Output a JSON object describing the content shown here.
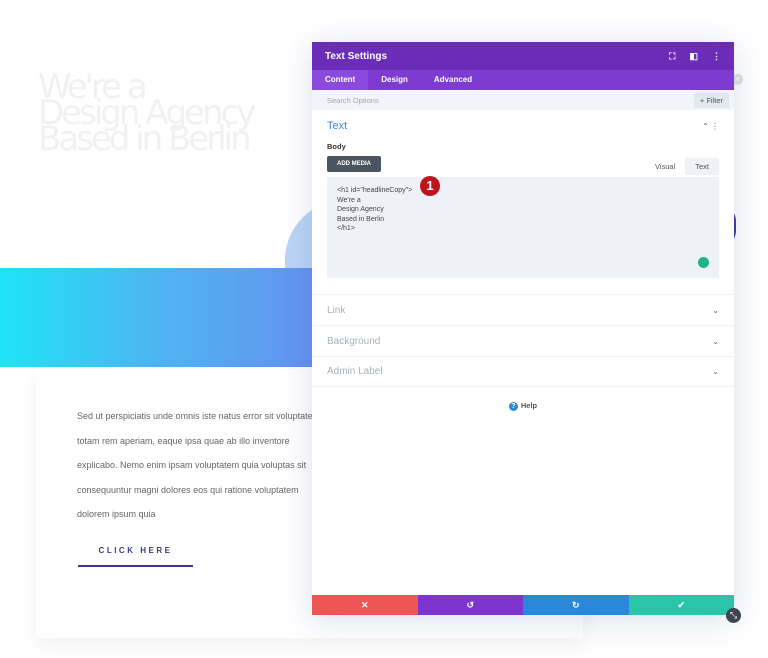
{
  "page": {
    "headline": "We're a\nDesign Agency\nBased in Berlin",
    "paragraph": [
      "Sed ut perspiciatis unde omnis iste natus error sit voluptatem",
      "totam rem aperiam, eaque ipsa quae ab illo inventore",
      "explicabo. Nemo enim ipsam voluptatem quia voluptas sit",
      "consequuntur magni dolores eos qui ratione voluptatem",
      "dolorem ipsum quia"
    ],
    "cta": "CLICK HERE"
  },
  "modal": {
    "title": "Text Settings",
    "tabs": [
      "Content",
      "Design",
      "Advanced"
    ],
    "search_placeholder": "Search Options",
    "filter": "+ Filter",
    "text_section": {
      "title": "Text",
      "body_label": "Body",
      "add_media": "ADD MEDIA",
      "editor_tabs": [
        "Visual",
        "Text"
      ],
      "content": "<h1 id=\"headlineCopy\">\nWe're a\nDesign Agency\nBased in Berlin\n</h1>"
    },
    "badge": "1",
    "sections": [
      "Link",
      "Background",
      "Admin Label"
    ],
    "help": "Help"
  },
  "colors": {
    "header": "#6b2db8",
    "tabs": "#7d3bd2",
    "cancel": "#ef5555",
    "undo": "#7e35d0",
    "redo": "#2b87da",
    "save": "#29c4a9"
  }
}
